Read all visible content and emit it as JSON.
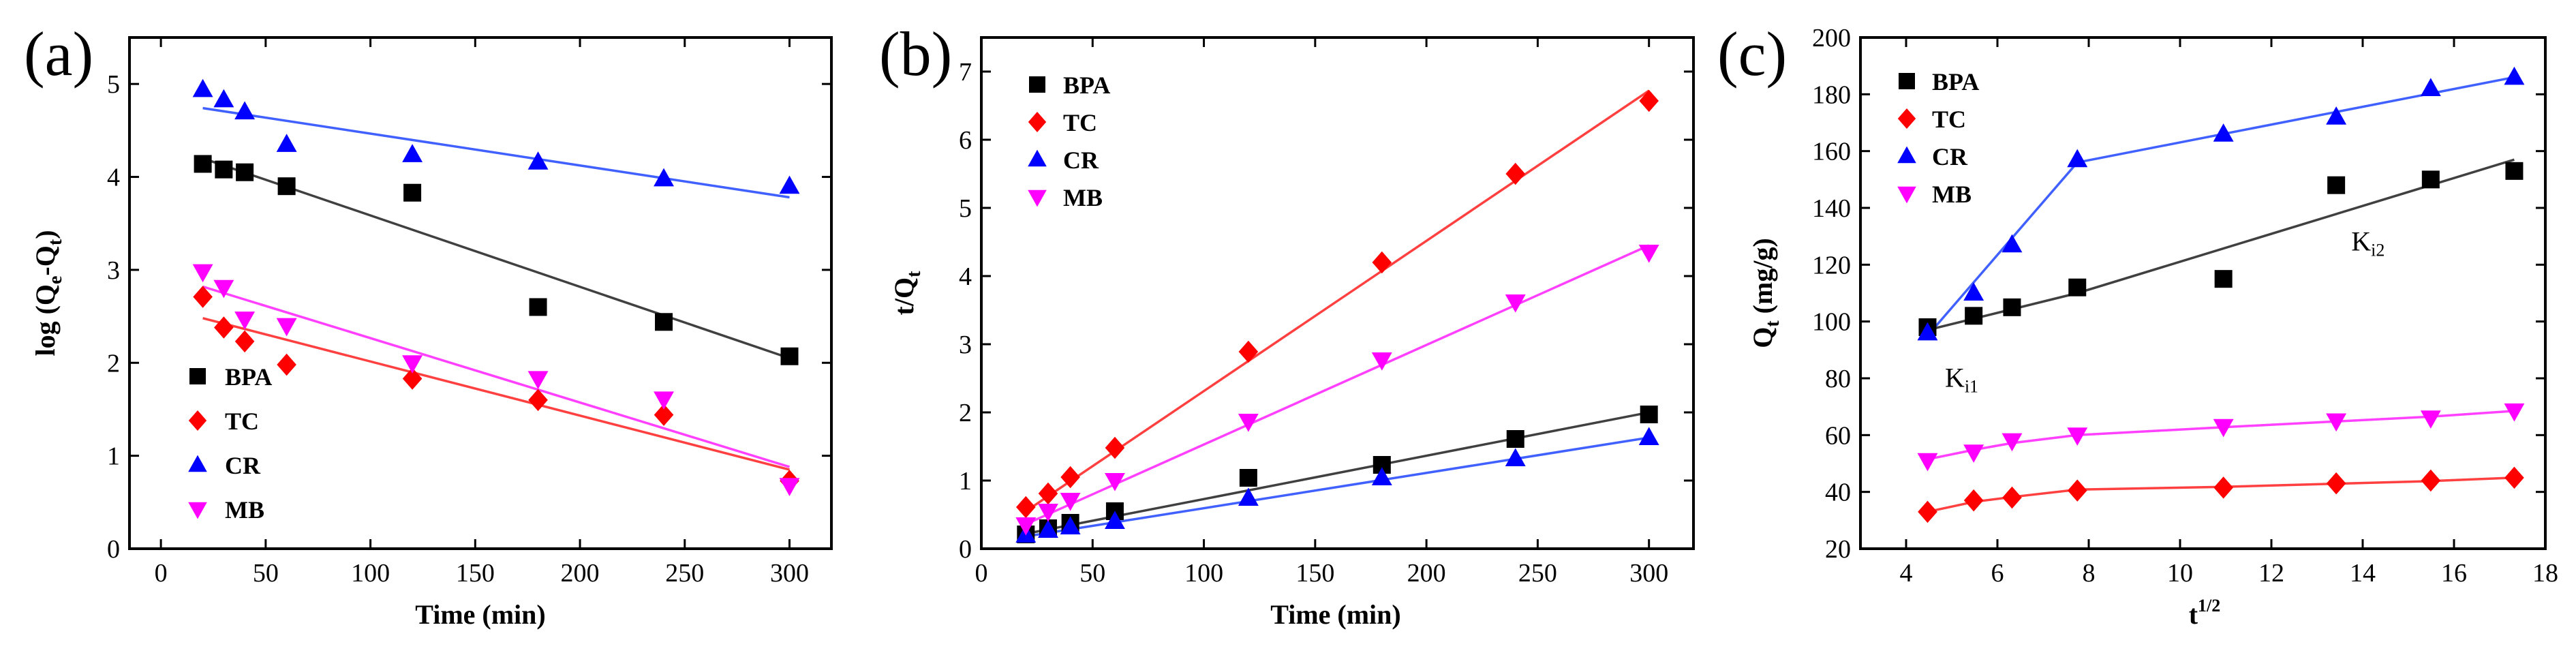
{
  "chart_data": [
    {
      "type": "scatter",
      "panel_label": "(a)",
      "xlabel": "Time (min)",
      "ylabel": "log (Q",
      "ylabel_sub1": "e",
      "ylabel_mid": "-Q",
      "ylabel_sub2": "t",
      "ylabel_end": ")",
      "xlim": [
        -15,
        320
      ],
      "ylim": [
        0,
        5.5
      ],
      "xticks": [
        "0",
        "50",
        "100",
        "150",
        "200",
        "250",
        "300"
      ],
      "yticks": [
        "0",
        "1",
        "2",
        "3",
        "4",
        "5"
      ],
      "legend_position": "lower-left",
      "series": [
        {
          "name": "BPA",
          "marker": "square",
          "color": "#000000",
          "line_color": "#404040",
          "x": [
            20,
            30,
            40,
            60,
            120,
            180,
            240,
            300
          ],
          "y": [
            4.14,
            4.08,
            4.05,
            3.9,
            3.83,
            2.6,
            2.44,
            2.07
          ],
          "fit": [
            [
              20,
              4.2
            ],
            [
              300,
              2.05
            ]
          ]
        },
        {
          "name": "TC",
          "marker": "diamond",
          "color": "#ff0000",
          "line_color": "#ff4040",
          "x": [
            20,
            30,
            40,
            60,
            120,
            180,
            240,
            300
          ],
          "y": [
            2.71,
            2.38,
            2.23,
            1.98,
            1.83,
            1.6,
            1.44,
            0.73
          ],
          "fit": [
            [
              20,
              2.48
            ],
            [
              300,
              0.85
            ]
          ]
        },
        {
          "name": "CR",
          "marker": "triangle-up",
          "color": "#0000ff",
          "line_color": "#4060ff",
          "x": [
            20,
            30,
            40,
            60,
            120,
            180,
            240,
            300
          ],
          "y": [
            4.94,
            4.83,
            4.7,
            4.35,
            4.24,
            4.16,
            3.98,
            3.9
          ],
          "fit": [
            [
              20,
              4.74
            ],
            [
              300,
              3.78
            ]
          ]
        },
        {
          "name": "MB",
          "marker": "triangle-down",
          "color": "#ff00ff",
          "line_color": "#ff40ff",
          "x": [
            20,
            30,
            40,
            60,
            120,
            180,
            240,
            300
          ],
          "y": [
            2.98,
            2.81,
            2.47,
            2.4,
            2.0,
            1.83,
            1.61,
            0.68
          ],
          "fit": [
            [
              20,
              2.82
            ],
            [
              300,
              0.88
            ]
          ]
        }
      ]
    },
    {
      "type": "scatter",
      "panel_label": "(b)",
      "xlabel": "Time (min)",
      "ylabel": "t/Q",
      "ylabel_sub": "t",
      "xlim": [
        0,
        320
      ],
      "ylim": [
        0,
        7.5
      ],
      "xticks": [
        "0",
        "50",
        "100",
        "150",
        "200",
        "250",
        "300"
      ],
      "yticks": [
        "0",
        "1",
        "2",
        "3",
        "4",
        "5",
        "6",
        "7"
      ],
      "legend_position": "top-left",
      "series": [
        {
          "name": "BPA",
          "marker": "square",
          "color": "#000000",
          "line_color": "#404040",
          "x": [
            20,
            30,
            40,
            60,
            120,
            180,
            240,
            300
          ],
          "y": [
            0.21,
            0.3,
            0.38,
            0.55,
            1.04,
            1.23,
            1.61,
            1.97
          ],
          "fit": [
            [
              20,
              0.22
            ],
            [
              300,
              2.0
            ]
          ]
        },
        {
          "name": "TC",
          "marker": "diamond",
          "color": "#ff0000",
          "line_color": "#ff4040",
          "x": [
            20,
            30,
            40,
            60,
            120,
            180,
            240,
            300
          ],
          "y": [
            0.61,
            0.81,
            1.05,
            1.48,
            2.89,
            4.2,
            5.5,
            6.57
          ],
          "fit": [
            [
              20,
              0.55
            ],
            [
              300,
              6.72
            ]
          ]
        },
        {
          "name": "CR",
          "marker": "triangle-up",
          "color": "#0000ff",
          "line_color": "#4060ff",
          "x": [
            20,
            30,
            40,
            60,
            120,
            180,
            240,
            300
          ],
          "y": [
            0.2,
            0.27,
            0.32,
            0.4,
            0.74,
            1.04,
            1.32,
            1.63
          ],
          "fit": [
            [
              20,
              0.18
            ],
            [
              300,
              1.63
            ]
          ]
        },
        {
          "name": "MB",
          "marker": "triangle-down",
          "color": "#ff00ff",
          "line_color": "#ff40ff",
          "x": [
            20,
            30,
            40,
            60,
            120,
            180,
            240,
            300
          ],
          "y": [
            0.35,
            0.55,
            0.71,
            1.0,
            1.87,
            2.77,
            3.62,
            4.35
          ],
          "fit": [
            [
              20,
              0.36
            ],
            [
              300,
              4.45
            ]
          ]
        }
      ]
    },
    {
      "type": "scatter",
      "panel_label": "(c)",
      "xlabel": "t",
      "xlabel_sup": "1/2",
      "ylabel": "Q",
      "ylabel_sub": "t",
      "ylabel_end": " (mg/g)",
      "xlim": [
        3,
        18
      ],
      "ylim": [
        20,
        200
      ],
      "xticks": [
        "4",
        "6",
        "8",
        "10",
        "12",
        "14",
        "16",
        "18"
      ],
      "yticks": [
        "20",
        "40",
        "60",
        "80",
        "100",
        "120",
        "140",
        "160",
        "180",
        "200"
      ],
      "legend_position": "top-left",
      "annotations": [
        {
          "text": "K",
          "sub": "i1",
          "x": 4.85,
          "y": 77
        },
        {
          "text": "K",
          "sub": "i2",
          "x": 13.75,
          "y": 125
        }
      ],
      "series": [
        {
          "name": "BPA",
          "marker": "square",
          "color": "#000000",
          "line_color": "#404040",
          "x": [
            4.47,
            5.48,
            6.32,
            7.75,
            10.95,
            13.42,
            15.49,
            17.32
          ],
          "y": [
            98,
            102,
            105,
            112,
            115,
            148,
            150,
            153
          ],
          "fit": [
            [
              4.47,
              97
            ],
            [
              7.75,
              110
            ],
            [
              17.32,
              157
            ]
          ]
        },
        {
          "name": "TC",
          "marker": "diamond",
          "color": "#ff0000",
          "line_color": "#ff4040",
          "x": [
            4.47,
            5.48,
            6.32,
            7.75,
            10.95,
            13.42,
            15.49,
            17.32
          ],
          "y": [
            33,
            37,
            38,
            40.5,
            41.5,
            43,
            44,
            45
          ],
          "fit": [
            [
              4.47,
              33
            ],
            [
              5.48,
              36.5
            ],
            [
              6.32,
              38.2
            ],
            [
              7.75,
              40.8
            ],
            [
              10.95,
              41.8
            ],
            [
              13.42,
              42.9
            ],
            [
              15.49,
              43.8
            ],
            [
              17.32,
              45
            ]
          ]
        },
        {
          "name": "CR",
          "marker": "triangle-up",
          "color": "#0000ff",
          "line_color": "#4060ff",
          "x": [
            4.47,
            5.48,
            6.32,
            7.75,
            10.95,
            13.42,
            15.49,
            17.32
          ],
          "y": [
            96,
            110,
            127,
            157,
            166,
            172,
            182,
            186
          ],
          "fit": [
            [
              4.47,
              95
            ],
            [
              7.75,
              156
            ],
            [
              17.32,
              186
            ]
          ]
        },
        {
          "name": "MB",
          "marker": "triangle-down",
          "color": "#ff00ff",
          "line_color": "#ff40ff",
          "x": [
            4.47,
            5.48,
            6.32,
            7.75,
            10.95,
            13.42,
            15.49,
            17.32
          ],
          "y": [
            51,
            54,
            58,
            60,
            63,
            65,
            66,
            68.5
          ],
          "fit": [
            [
              4.47,
              51.5
            ],
            [
              5.48,
              54.8
            ],
            [
              6.32,
              57.2
            ],
            [
              7.75,
              60
            ],
            [
              10.95,
              62.8
            ],
            [
              13.42,
              64.8
            ],
            [
              15.49,
              66.5
            ],
            [
              17.32,
              68.5
            ]
          ]
        }
      ]
    }
  ]
}
